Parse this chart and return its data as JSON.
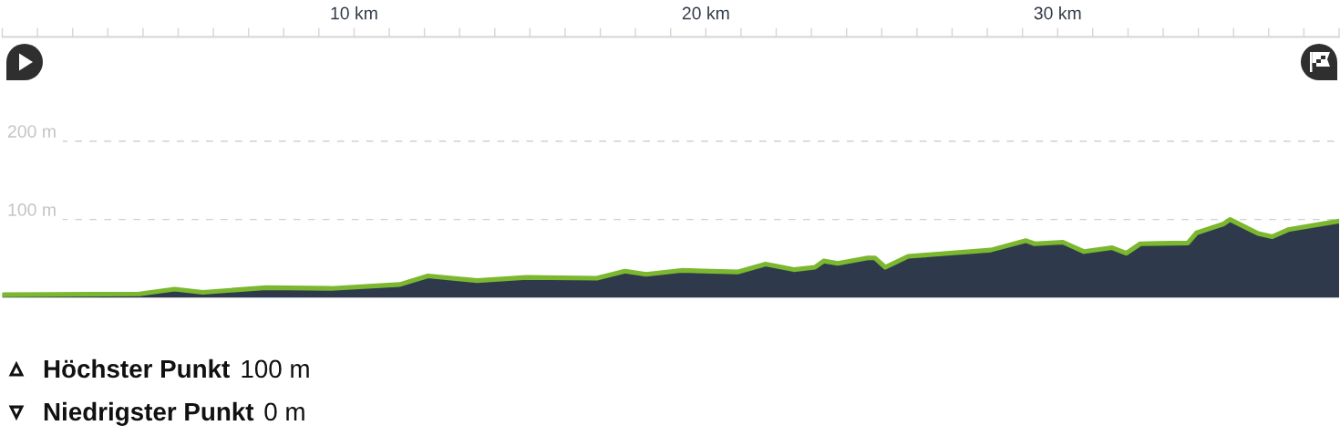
{
  "chart_data": {
    "type": "area",
    "x": [
      0,
      3.9,
      4.9,
      5.7,
      7.5,
      9.35,
      11.3,
      12.1,
      13.5,
      14.9,
      16.9,
      17.7,
      18.3,
      19.3,
      20.9,
      21.7,
      22.5,
      23.1,
      23.35,
      23.75,
      24.6,
      24.8,
      25.1,
      25.75,
      28.1,
      29.1,
      29.35,
      30.15,
      30.75,
      31.55,
      31.95,
      32.35,
      33.7,
      33.95,
      34.7,
      34.9,
      35.7,
      36.1,
      36.55,
      38
    ],
    "series": [
      {
        "color": "#2e3a4b",
        "values": [
          4,
          5,
          11,
          7,
          13,
          12,
          17,
          28,
          22,
          26,
          25,
          34,
          30,
          35,
          33,
          43,
          36,
          39,
          47,
          44,
          51,
          51,
          39,
          53,
          61,
          73,
          69,
          71,
          59,
          64,
          57,
          69,
          70,
          83,
          94,
          100,
          82,
          78,
          87,
          98
        ]
      }
    ],
    "xlim": [
      0,
      38
    ],
    "xticks": [
      {
        "value": 0,
        "label": null
      },
      {
        "value": 1,
        "label": null
      },
      {
        "value": 2,
        "label": null
      },
      {
        "value": 3,
        "label": null
      },
      {
        "value": 4,
        "label": null
      },
      {
        "value": 5,
        "label": null
      },
      {
        "value": 6,
        "label": null
      },
      {
        "value": 7,
        "label": null
      },
      {
        "value": 8,
        "label": null
      },
      {
        "value": 9,
        "label": null
      },
      {
        "value": 10,
        "label": "10 km"
      },
      {
        "value": 11,
        "label": null
      },
      {
        "value": 12,
        "label": null
      },
      {
        "value": 13,
        "label": null
      },
      {
        "value": 14,
        "label": null
      },
      {
        "value": 15,
        "label": null
      },
      {
        "value": 16,
        "label": null
      },
      {
        "value": 17,
        "label": null
      },
      {
        "value": 18,
        "label": null
      },
      {
        "value": 19,
        "label": null
      },
      {
        "value": 20,
        "label": "20 km"
      },
      {
        "value": 21,
        "label": null
      },
      {
        "value": 22,
        "label": null
      },
      {
        "value": 23,
        "label": null
      },
      {
        "value": 24,
        "label": null
      },
      {
        "value": 25,
        "label": null
      },
      {
        "value": 26,
        "label": null
      },
      {
        "value": 27,
        "label": null
      },
      {
        "value": 28,
        "label": null
      },
      {
        "value": 29,
        "label": null
      },
      {
        "value": 30,
        "label": "30 km"
      },
      {
        "value": 31,
        "label": null
      },
      {
        "value": 32,
        "label": null
      },
      {
        "value": 33,
        "label": null
      },
      {
        "value": 34,
        "label": null
      },
      {
        "value": 35,
        "label": null
      },
      {
        "value": 36,
        "label": null
      },
      {
        "value": 37,
        "label": null
      },
      {
        "value": 38,
        "label": null
      }
    ],
    "ylim": [
      0,
      333
    ],
    "yticks": [
      {
        "value": 100,
        "label": "100 m"
      },
      {
        "value": 200,
        "label": "200 m"
      }
    ],
    "grid": "y",
    "annotations": [
      "Höchster Punkt",
      "100 m",
      "Niedrigster Punkt",
      "0 m"
    ]
  }
}
